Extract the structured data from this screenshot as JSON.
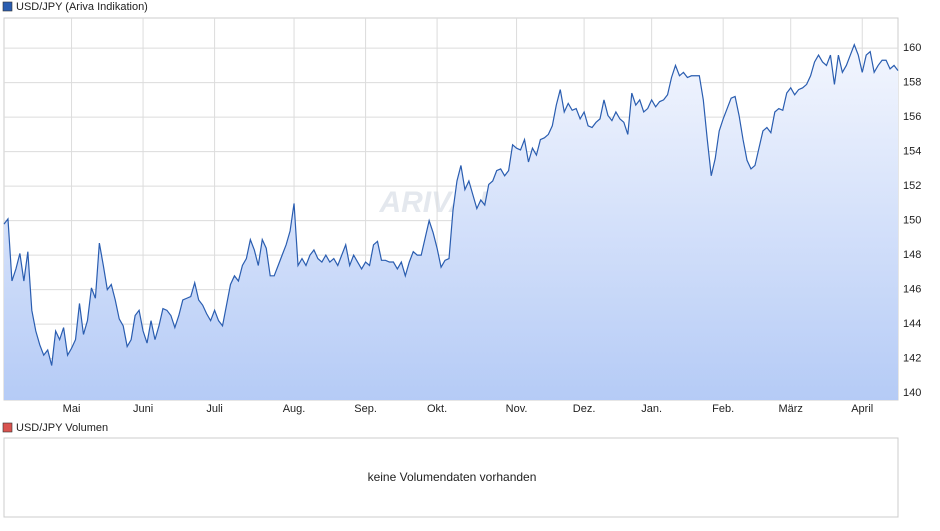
{
  "chart_data": [
    {
      "type": "line",
      "watermark": "ARIVA.DE",
      "series": [
        {
          "name": "USD/JPY (Ariva Indikation)",
          "color": "#2a5db0",
          "values": [
            149.8,
            150.1,
            146.5,
            147.2,
            148.1,
            146.5,
            148.2,
            144.8,
            143.6,
            142.8,
            142.2,
            142.5,
            141.6,
            143.6,
            143.1,
            143.8,
            142.2,
            142.6,
            143.1,
            145.2,
            143.4,
            144.2,
            146.1,
            145.5,
            148.7,
            147.4,
            146.0,
            146.3,
            145.4,
            144.3,
            143.9,
            142.7,
            143.1,
            144.5,
            144.8,
            143.6,
            142.9,
            144.2,
            143.1,
            143.9,
            144.9,
            144.8,
            144.5,
            143.8,
            144.5,
            145.4,
            145.5,
            145.6,
            146.4,
            145.4,
            145.1,
            144.6,
            144.2,
            144.8,
            144.2,
            143.9,
            145.1,
            146.3,
            146.8,
            146.5,
            147.4,
            147.8,
            148.9,
            148.3,
            147.4,
            148.9,
            148.4,
            146.8,
            146.8,
            147.4,
            148.0,
            148.6,
            149.4,
            151.0,
            147.4,
            147.8,
            147.4,
            148.0,
            148.3,
            147.8,
            147.6,
            148.0,
            147.6,
            147.8,
            147.4,
            148.0,
            148.6,
            147.4,
            148.0,
            147.6,
            147.2,
            147.6,
            147.4,
            148.6,
            148.8,
            147.7,
            147.7,
            147.6,
            147.6,
            147.2,
            147.6,
            146.8,
            147.6,
            148.2,
            148.0,
            148.0,
            149.0,
            150.0,
            149.3,
            148.4,
            147.3,
            147.7,
            147.8,
            150.6,
            152.3,
            153.2,
            151.8,
            152.3,
            151.5,
            150.7,
            151.2,
            150.9,
            152.1,
            152.3,
            152.9,
            153.0,
            152.6,
            152.9,
            154.4,
            154.2,
            154.1,
            154.7,
            153.4,
            154.2,
            153.8,
            154.7,
            154.8,
            155.0,
            155.5,
            156.7,
            157.6,
            156.3,
            156.8,
            156.4,
            156.5,
            155.9,
            156.3,
            155.5,
            155.4,
            155.7,
            155.9,
            157.0,
            156.1,
            155.8,
            156.3,
            155.9,
            155.7,
            155.0,
            157.4,
            156.7,
            157.0,
            156.3,
            156.5,
            157.0,
            156.6,
            156.9,
            157.0,
            157.3,
            158.3,
            159.0,
            158.4,
            158.6,
            158.3,
            158.4,
            158.4,
            158.4,
            157.0,
            154.7,
            152.6,
            153.6,
            155.2,
            155.9,
            156.5,
            157.1,
            157.2,
            156.1,
            154.7,
            153.5,
            153.0,
            153.2,
            154.2,
            155.2,
            155.4,
            155.1,
            156.3,
            156.5,
            156.4,
            157.4,
            157.7,
            157.3,
            157.6,
            157.7,
            157.9,
            158.4,
            159.2,
            159.6,
            159.2,
            159.0,
            159.6,
            157.9,
            159.6,
            158.6,
            159.0,
            159.6,
            160.2,
            159.6,
            158.6,
            159.6,
            159.8,
            158.6,
            159.0,
            159.3,
            159.3,
            158.8,
            159.0,
            158.7
          ]
        }
      ],
      "xlim": [
        0,
        225
      ],
      "xticks": [
        {
          "value": 17,
          "label": "Mai"
        },
        {
          "value": 35,
          "label": "Juni"
        },
        {
          "value": 53,
          "label": "Juli"
        },
        {
          "value": 73,
          "label": "Aug."
        },
        {
          "value": 91,
          "label": "Sep."
        },
        {
          "value": 109,
          "label": "Okt."
        },
        {
          "value": 129,
          "label": "Nov."
        },
        {
          "value": 146,
          "label": "Dez."
        },
        {
          "value": 163,
          "label": "Jan."
        },
        {
          "value": 181,
          "label": "Feb."
        },
        {
          "value": 198,
          "label": "März"
        },
        {
          "value": 216,
          "label": "April"
        }
      ],
      "ylim": [
        139.6,
        161.75
      ],
      "yticks": [
        140,
        142,
        144,
        146,
        148,
        150,
        152,
        154,
        156,
        158,
        160
      ],
      "grid": true
    },
    {
      "type": "bar",
      "series": [
        {
          "name": "USD/JPY Volumen",
          "color": "#d9534f",
          "values": []
        }
      ],
      "annotation": "keine Volumendaten vorhanden"
    }
  ]
}
